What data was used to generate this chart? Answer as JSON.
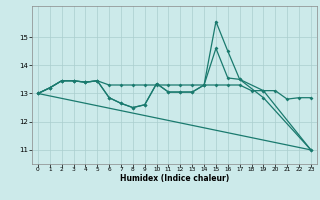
{
  "xlabel": "Humidex (Indice chaleur)",
  "xlim": [
    -0.5,
    23.5
  ],
  "ylim": [
    10.5,
    16.1
  ],
  "yticks": [
    11,
    12,
    13,
    14,
    15
  ],
  "xticks": [
    0,
    1,
    2,
    3,
    4,
    5,
    6,
    7,
    8,
    9,
    10,
    11,
    12,
    13,
    14,
    15,
    16,
    17,
    18,
    19,
    20,
    21,
    22,
    23
  ],
  "bg_color": "#cceaea",
  "grid_color": "#aacece",
  "line_color": "#1a7a6e",
  "line1": [
    13.0,
    13.2,
    13.45,
    13.45,
    13.4,
    13.45,
    13.3,
    13.3,
    13.3,
    13.3,
    13.3,
    13.3,
    13.3,
    13.3,
    13.3,
    13.3,
    13.3,
    13.3,
    13.1,
    13.1,
    13.1,
    12.8,
    12.85,
    12.85
  ],
  "line2_x": [
    0,
    1,
    2,
    3,
    4,
    5,
    6,
    7,
    8,
    9,
    10,
    11,
    12,
    13,
    14,
    15,
    16,
    17,
    19,
    23
  ],
  "line2_y": [
    13.0,
    13.2,
    13.45,
    13.45,
    13.4,
    13.45,
    12.85,
    12.65,
    12.5,
    12.6,
    13.35,
    13.05,
    13.05,
    13.05,
    13.3,
    15.55,
    14.5,
    13.5,
    13.1,
    11.0
  ],
  "line3_x": [
    0,
    1,
    2,
    3,
    4,
    5,
    6,
    7,
    8,
    9,
    10,
    11,
    12,
    13,
    14,
    15,
    16,
    17,
    19,
    23
  ],
  "line3_y": [
    13.0,
    13.2,
    13.45,
    13.45,
    13.4,
    13.45,
    12.85,
    12.65,
    12.5,
    12.6,
    13.35,
    13.05,
    13.05,
    13.05,
    13.3,
    14.6,
    13.55,
    13.5,
    12.85,
    11.0
  ],
  "line4_x": [
    0,
    23
  ],
  "line4_y": [
    13.0,
    11.0
  ]
}
